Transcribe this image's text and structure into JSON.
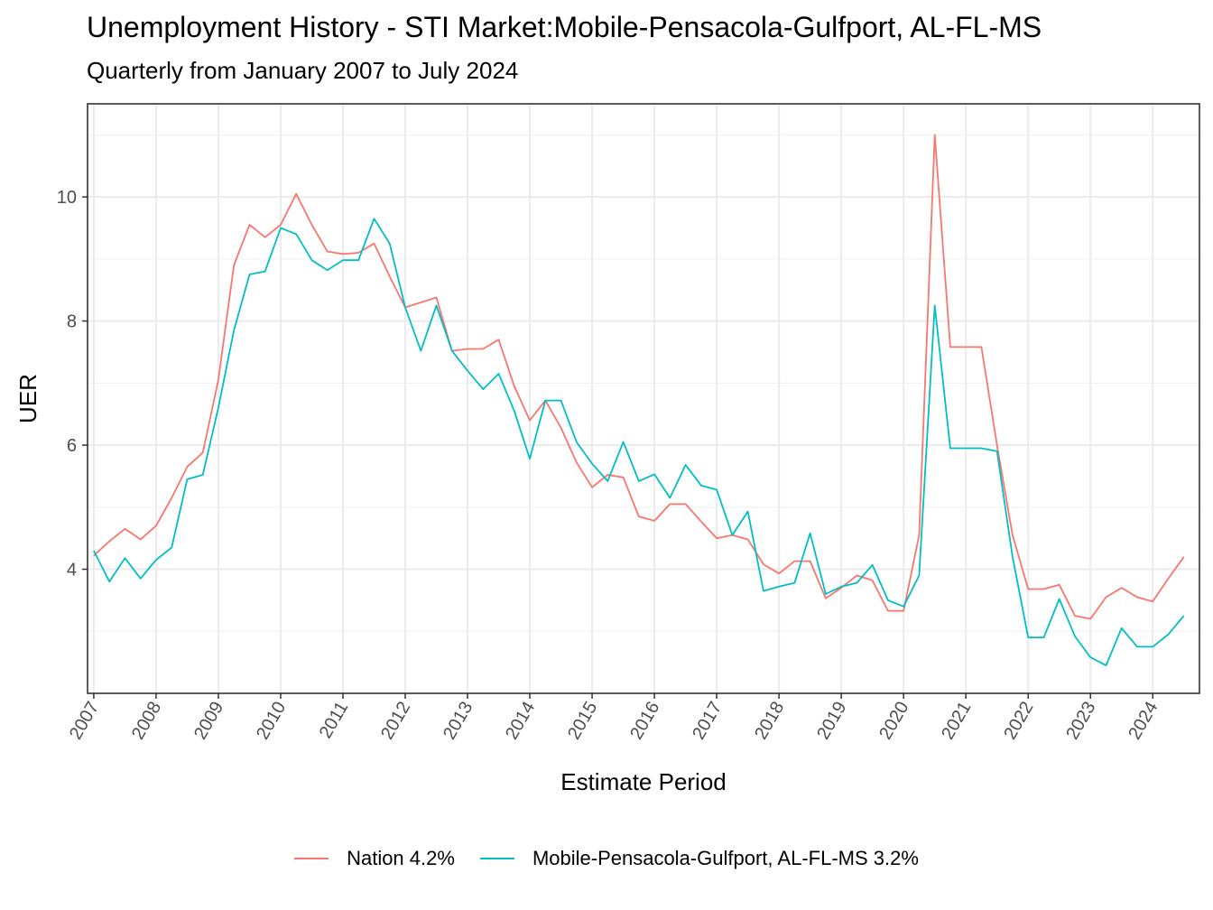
{
  "chart_data": {
    "type": "line",
    "title": "Unemployment History - STI Market:Mobile-Pensacola-Gulfport, AL-FL-MS",
    "subtitle": "Quarterly from January 2007 to July 2024",
    "xlabel": "Estimate Period",
    "ylabel": "UER",
    "x_ticks": [
      "2007",
      "2008",
      "2009",
      "2010",
      "2011",
      "2012",
      "2013",
      "2014",
      "2015",
      "2016",
      "2017",
      "2018",
      "2019",
      "2020",
      "2021",
      "2022",
      "2023",
      "2024"
    ],
    "y_ticks": [
      4,
      6,
      8,
      10
    ],
    "ylim": [
      2.0,
      11.5
    ],
    "xlim_years": [
      2006.9,
      2024.75
    ],
    "grid": true,
    "legend_position": "bottom",
    "x_start_year": 2007,
    "x_step_year": 0.25,
    "series": [
      {
        "name": "Nation 4.2%",
        "color": "#F8766D",
        "values": [
          4.22,
          4.45,
          4.65,
          4.48,
          4.7,
          5.15,
          5.65,
          5.88,
          7.05,
          8.9,
          9.55,
          9.35,
          9.55,
          10.05,
          9.55,
          9.12,
          9.08,
          9.1,
          9.25,
          8.72,
          8.22,
          8.3,
          8.38,
          7.52,
          7.55,
          7.55,
          7.7,
          6.95,
          6.4,
          6.72,
          6.28,
          5.72,
          5.32,
          5.52,
          5.48,
          4.85,
          4.78,
          5.05,
          5.05,
          4.77,
          4.5,
          4.55,
          4.48,
          4.08,
          3.93,
          4.13,
          4.13,
          3.53,
          3.7,
          3.9,
          3.82,
          3.33,
          3.33,
          4.55,
          11.0,
          7.58,
          7.58,
          7.58,
          6.0,
          4.55,
          3.68,
          3.68,
          3.75,
          3.25,
          3.2,
          3.55,
          3.7,
          3.55,
          3.48,
          3.85,
          4.2
        ]
      },
      {
        "name": "Mobile-Pensacola-Gulfport, AL-FL-MS 3.2%",
        "color": "#00BFC4",
        "values": [
          4.3,
          3.8,
          4.18,
          3.85,
          4.15,
          4.35,
          5.45,
          5.52,
          6.6,
          7.85,
          8.75,
          8.8,
          9.5,
          9.4,
          8.98,
          8.82,
          8.98,
          8.98,
          9.65,
          9.25,
          8.22,
          7.52,
          8.25,
          7.52,
          7.2,
          6.9,
          7.15,
          6.55,
          5.78,
          6.72,
          6.72,
          6.05,
          5.7,
          5.42,
          6.05,
          5.42,
          5.53,
          5.15,
          5.68,
          5.35,
          5.28,
          4.55,
          4.93,
          3.65,
          3.72,
          3.78,
          4.58,
          3.6,
          3.72,
          3.78,
          4.07,
          3.5,
          3.4,
          3.9,
          8.25,
          5.95,
          5.95,
          5.95,
          5.9,
          4.2,
          2.9,
          2.9,
          3.52,
          2.92,
          2.58,
          2.45,
          3.05,
          2.75,
          2.75,
          2.95,
          3.25
        ]
      }
    ]
  }
}
